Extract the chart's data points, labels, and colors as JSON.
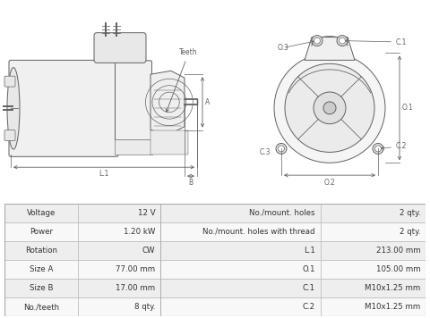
{
  "table_rows": [
    [
      "Voltage",
      "12 V",
      "No./mount. holes",
      "2 qty."
    ],
    [
      "Power",
      "1.20 kW",
      "No./mount. holes with thread",
      "2 qty."
    ],
    [
      "Rotation",
      "CW",
      "L.1",
      "213.00 mm"
    ],
    [
      "Size A",
      "77.00 mm",
      "O.1",
      "105.00 mm"
    ],
    [
      "Size B",
      "17.00 mm",
      "C.1",
      "M10x1.25 mm"
    ],
    [
      "No./teeth",
      "8 qty.",
      "C.2",
      "M10x1.25 mm"
    ]
  ],
  "bg_color": "#ffffff",
  "table_row_bg1": "#eeeeee",
  "table_row_bg2": "#f8f8f8",
  "table_border_color": "#bbbbbb",
  "dc": "#606060",
  "dim_color": "#606060"
}
